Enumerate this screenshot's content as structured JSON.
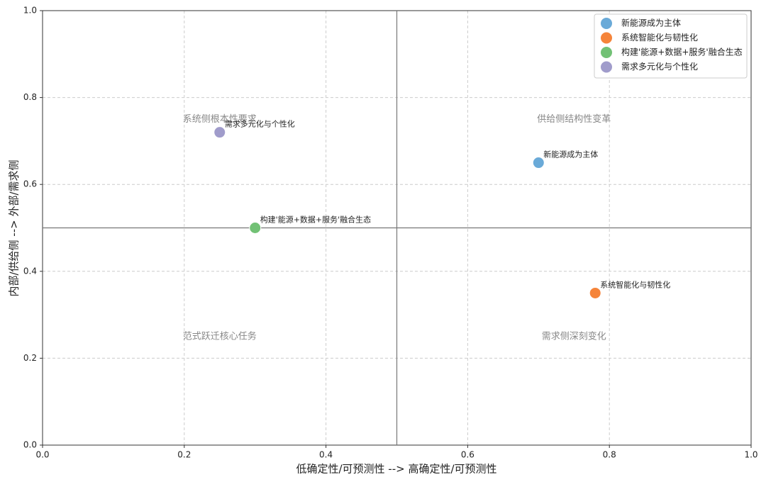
{
  "chart_data": {
    "type": "scatter",
    "xlabel": "低确定性/可预测性 --> 高确定性/可预测性",
    "ylabel": "内部/供给侧 --> 外部/需求侧",
    "series": [
      {
        "name": "新能源成为主体",
        "color": "#6aaad8",
        "x": [
          0.7
        ],
        "values": [
          0.65
        ]
      },
      {
        "name": "系统智能化与韧性化",
        "color": "#f5843a",
        "x": [
          0.78
        ],
        "values": [
          0.35
        ]
      },
      {
        "name": "构建'能源+数据+服务'融合生态",
        "color": "#72c175",
        "x": [
          0.3
        ],
        "values": [
          0.5
        ]
      },
      {
        "name": "需求多元化与个性化",
        "color": "#a09ccb",
        "x": [
          0.25
        ],
        "values": [
          0.72
        ]
      }
    ],
    "annotations": [
      "系统侧根本性要求",
      "供给侧结构性变革",
      "范式跃迁核心任务",
      "需求侧深刻变化"
    ],
    "axvline": 0.5,
    "axhline": 0.5,
    "xlim": [
      0,
      1
    ],
    "ylim": [
      0,
      1
    ],
    "xticks": [
      {
        "value": 0,
        "label": "0.0"
      },
      0.2,
      0.4,
      0.6,
      0.8,
      {
        "value": 1,
        "label": "1.0"
      }
    ],
    "yticks": [
      {
        "value": 0,
        "label": "0.0"
      },
      0.2,
      0.4,
      0.6,
      0.8,
      {
        "value": 1,
        "label": "1.0"
      }
    ],
    "grid": true,
    "legend": "upper right"
  }
}
